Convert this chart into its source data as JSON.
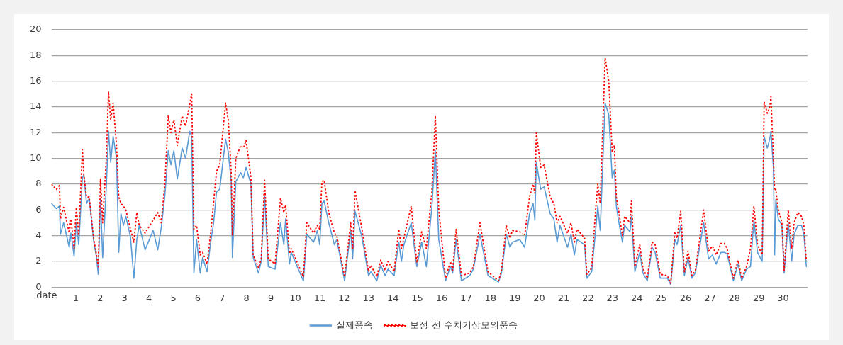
{
  "chart_data": {
    "type": "line",
    "xlabel": "date",
    "grid": "y",
    "legend": "bottom",
    "marker": "none",
    "xlim": [
      0,
      31
    ],
    "xticks": [
      1,
      2,
      3,
      4,
      5,
      6,
      7,
      8,
      9,
      10,
      11,
      12,
      13,
      14,
      15,
      16,
      17,
      18,
      19,
      20,
      21,
      22,
      23,
      24,
      25,
      26,
      27,
      28,
      29,
      30
    ],
    "ylim": [
      0,
      20
    ],
    "yticks": [
      0,
      2,
      4,
      6,
      8,
      10,
      12,
      14,
      16,
      18,
      20
    ],
    "x": [
      0,
      0.2,
      0.33,
      0.37,
      0.5,
      0.73,
      0.8,
      0.93,
      1.02,
      1.12,
      1.27,
      1.33,
      1.44,
      1.55,
      1.73,
      1.85,
      1.92,
      2.01,
      2.1,
      2.25,
      2.34,
      2.43,
      2.53,
      2.67,
      2.76,
      2.85,
      2.95,
      3.05,
      3.24,
      3.38,
      3.5,
      3.6,
      3.84,
      4.17,
      4.36,
      4.5,
      4.65,
      4.79,
      4.9,
      5.02,
      5.16,
      5.36,
      5.5,
      5.67,
      5.75,
      5.84,
      5.95,
      6.1,
      6.2,
      6.38,
      6.53,
      6.65,
      6.77,
      6.9,
      7.14,
      7.25,
      7.37,
      7.42,
      7.56,
      7.76,
      7.87,
      7.98,
      8.18,
      8.27,
      8.49,
      8.6,
      8.74,
      8.89,
      9.17,
      9.39,
      9.53,
      9.6,
      9.76,
      9.83,
      10.33,
      10.47,
      10.75,
      10.9,
      11.0,
      11.09,
      11.18,
      11.37,
      11.6,
      11.7,
      12.02,
      12.27,
      12.35,
      12.45,
      12.73,
      13.0,
      13.1,
      13.34,
      13.5,
      13.68,
      13.8,
      14.05,
      14.24,
      14.35,
      14.45,
      14.75,
      14.98,
      15.18,
      15.37,
      15.6,
      15.74,
      15.88,
      16.16,
      16.36,
      16.45,
      16.59,
      16.81,
      17.15,
      17.3,
      17.57,
      17.9,
      18.33,
      18.45,
      18.65,
      18.8,
      18.9,
      19.2,
      19.4,
      19.6,
      19.75,
      19.82,
      19.88,
      20.06,
      20.2,
      20.45,
      20.6,
      20.73,
      20.85,
      21.16,
      21.3,
      21.44,
      21.55,
      21.86,
      21.95,
      22.15,
      22.31,
      22.4,
      22.5,
      22.7,
      22.85,
      22.99,
      23.08,
      23.16,
      23.25,
      23.41,
      23.5,
      23.72,
      23.78,
      23.92,
      24.12,
      24.25,
      24.43,
      24.63,
      24.75,
      24.96,
      25.25,
      25.39,
      25.56,
      25.65,
      25.8,
      25.95,
      26.1,
      26.26,
      26.4,
      26.74,
      26.94,
      27.1,
      27.25,
      27.45,
      27.59,
      27.7,
      27.96,
      28.15,
      28.3,
      28.5,
      28.66,
      28.8,
      28.95,
      29.14,
      29.22,
      29.35,
      29.45,
      29.5,
      29.6,
      29.65,
      29.7,
      29.8,
      29.95,
      30.04,
      30.21,
      30.35,
      30.45,
      30.6,
      30.75,
      30.85,
      30.95
    ],
    "series": [
      {
        "name": "실제풍속",
        "color": "#5b9bd5",
        "line_style": "solid",
        "values": [
          6.5,
          6.1,
          6.3,
          4.1,
          5.0,
          3.1,
          4.2,
          2.4,
          5.0,
          3.3,
          8.5,
          8.7,
          6.5,
          6.9,
          3.6,
          2.3,
          1.0,
          6.9,
          2.3,
          7.8,
          12.1,
          9.7,
          11.7,
          10.0,
          2.7,
          5.7,
          4.8,
          5.5,
          3.9,
          0.7,
          3.7,
          4.8,
          2.9,
          4.4,
          2.9,
          4.6,
          7.1,
          10.6,
          9.5,
          10.6,
          8.4,
          10.8,
          10.0,
          12.1,
          11.7,
          1.1,
          3.7,
          1.1,
          2.3,
          1.2,
          3.5,
          5.0,
          7.4,
          7.6,
          11.5,
          10.5,
          8.2,
          2.3,
          8.2,
          8.9,
          8.5,
          9.3,
          8.0,
          2.3,
          1.1,
          2.0,
          7.1,
          1.6,
          1.4,
          5.0,
          3.3,
          5.3,
          1.8,
          2.7,
          0.5,
          4.1,
          3.5,
          4.4,
          3.3,
          6.5,
          6.7,
          5.0,
          3.3,
          3.7,
          0.5,
          4.4,
          2.2,
          5.9,
          3.9,
          0.9,
          1.2,
          0.5,
          1.7,
          0.9,
          1.4,
          0.9,
          3.5,
          2.0,
          3.3,
          5.0,
          1.6,
          3.5,
          1.6,
          6.3,
          10.6,
          3.7,
          0.5,
          1.6,
          1.1,
          3.7,
          0.5,
          0.9,
          1.4,
          4.1,
          0.9,
          0.4,
          1.1,
          4.1,
          3.1,
          3.5,
          3.7,
          3.1,
          5.7,
          6.5,
          5.2,
          9.7,
          7.6,
          7.8,
          5.7,
          5.3,
          3.5,
          4.8,
          3.1,
          4.1,
          2.5,
          3.7,
          3.3,
          0.7,
          1.2,
          4.4,
          6.3,
          4.4,
          14.3,
          13.4,
          8.5,
          9.1,
          6.3,
          5.2,
          3.5,
          4.8,
          4.3,
          5.5,
          1.2,
          2.7,
          1.1,
          0.5,
          3.1,
          2.7,
          0.7,
          0.7,
          0.2,
          3.7,
          3.3,
          4.8,
          0.9,
          2.3,
          0.7,
          1.1,
          5.0,
          2.2,
          2.5,
          1.8,
          2.7,
          2.7,
          2.6,
          0.5,
          1.8,
          0.5,
          1.4,
          1.6,
          5.2,
          2.7,
          2.0,
          11.7,
          10.8,
          11.5,
          12.1,
          9.3,
          2.5,
          6.8,
          5.3,
          4.8,
          1.1,
          5.0,
          2.0,
          4.1,
          4.8,
          4.8,
          4.1,
          1.6
        ]
      },
      {
        "name": "보정 전 수치기상모의풍속",
        "color": "#ff0000",
        "line_style": "dotted",
        "values": [
          8.0,
          7.6,
          7.9,
          5.3,
          6.2,
          4.2,
          5.3,
          3.0,
          6.2,
          4.0,
          10.7,
          8.7,
          7.0,
          7.0,
          3.8,
          2.5,
          1.6,
          8.4,
          5.0,
          10.0,
          15.2,
          13.0,
          14.3,
          11.0,
          7.0,
          6.5,
          6.3,
          6.0,
          4.5,
          3.5,
          5.8,
          4.8,
          4.2,
          5.2,
          5.8,
          5.0,
          8.0,
          13.3,
          12.0,
          13.0,
          11.0,
          13.3,
          12.5,
          14.2,
          15.0,
          4.5,
          4.8,
          2.5,
          2.7,
          1.8,
          4.2,
          6.6,
          9.0,
          9.5,
          14.3,
          13.0,
          9.0,
          4.0,
          10.0,
          11.0,
          10.8,
          11.4,
          8.5,
          2.5,
          1.5,
          2.2,
          8.3,
          2.2,
          1.8,
          6.9,
          5.8,
          6.4,
          2.6,
          3.0,
          0.8,
          5.0,
          4.2,
          4.8,
          4.5,
          8.2,
          8.3,
          5.8,
          4.2,
          4.0,
          0.8,
          5.0,
          3.0,
          7.5,
          4.5,
          1.2,
          1.7,
          0.8,
          2.1,
          1.3,
          2.0,
          1.2,
          4.5,
          3.0,
          3.8,
          6.3,
          1.9,
          4.3,
          3.0,
          7.5,
          13.3,
          6.0,
          0.7,
          2.0,
          1.3,
          4.5,
          0.9,
          1.1,
          1.6,
          5.0,
          1.2,
          0.5,
          1.3,
          4.8,
          3.8,
          4.4,
          4.3,
          4.0,
          7.0,
          8.0,
          7.3,
          12.0,
          9.3,
          9.5,
          7.0,
          6.5,
          5.0,
          5.5,
          4.2,
          5.0,
          3.5,
          4.5,
          3.8,
          1.0,
          1.5,
          6.0,
          8.0,
          6.5,
          17.8,
          16.0,
          10.5,
          11.0,
          7.0,
          6.0,
          4.0,
          5.5,
          5.0,
          6.7,
          1.6,
          3.3,
          1.5,
          0.7,
          3.5,
          3.3,
          1.0,
          0.9,
          0.3,
          4.3,
          3.8,
          5.9,
          1.2,
          2.8,
          0.9,
          1.3,
          6.0,
          2.8,
          3.2,
          2.5,
          3.4,
          3.4,
          3.0,
          0.7,
          2.1,
          0.7,
          1.6,
          3.0,
          6.3,
          3.3,
          2.5,
          14.4,
          13.5,
          14.0,
          14.8,
          10.0,
          7.5,
          7.6,
          6.0,
          5.0,
          1.3,
          6.0,
          3.0,
          5.0,
          5.8,
          5.5,
          4.8,
          2.0
        ]
      }
    ]
  }
}
